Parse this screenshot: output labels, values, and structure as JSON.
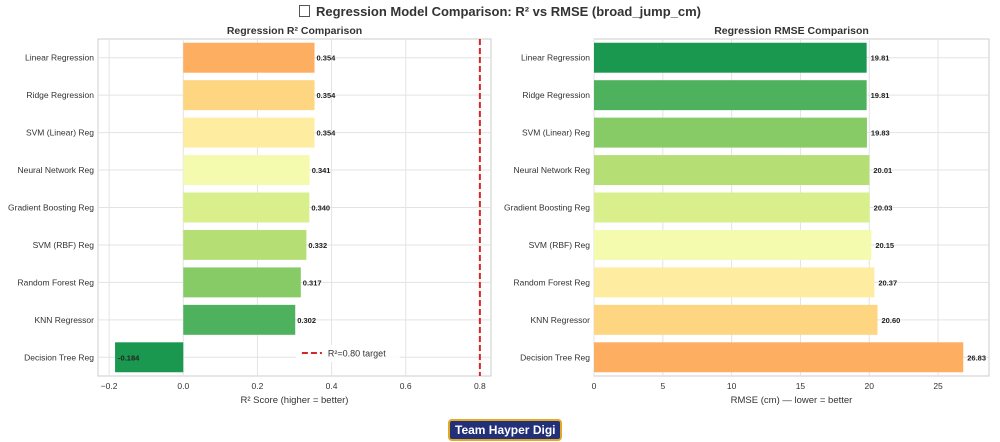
{
  "figure_title": "Regression Model Comparison: R² vs RMSE (broad_jump_cm)",
  "watermark": "Team Hayper Digi",
  "chart_data": [
    {
      "type": "bar",
      "orientation": "horizontal",
      "title": "Regression R² Comparison",
      "xlabel": "R² Score (higher = better)",
      "ylabel": "",
      "categories": [
        "Linear Regression",
        "Ridge Regression",
        "SVM (Linear) Reg",
        "Neural Network Reg",
        "Gradient Boosting Reg",
        "SVM (RBF) Reg",
        "Random Forest Reg",
        "KNN Regressor",
        "Decision Tree Reg"
      ],
      "values": [
        0.354,
        0.354,
        0.354,
        0.341,
        0.34,
        0.332,
        0.317,
        0.302,
        -0.184
      ],
      "value_labels": [
        "0.354",
        "0.354",
        "0.354",
        "0.341",
        "0.340",
        "0.332",
        "0.317",
        "0.302",
        "-0.184"
      ],
      "bar_colors": [
        "#fdae61",
        "#fed580",
        "#feeda1",
        "#f4fbaf",
        "#d9ef8b",
        "#b5df74",
        "#86cb66",
        "#4eb15d",
        "#1a9850"
      ],
      "xlim": [
        -0.23,
        0.83
      ],
      "xticks": [
        -0.2,
        0.0,
        0.2,
        0.4,
        0.6,
        0.8
      ],
      "xtick_labels": [
        "−0.2",
        "0.0",
        "0.2",
        "0.4",
        "0.6",
        "0.8"
      ],
      "reference_line": {
        "x": 0.8,
        "label": "R²=0.80 target",
        "color": "#d62728",
        "style": "dashed"
      },
      "legend_position": "lower-center",
      "grid": true
    },
    {
      "type": "bar",
      "orientation": "horizontal",
      "title": "Regression RMSE Comparison",
      "xlabel": "RMSE (cm) — lower = better",
      "ylabel": "",
      "categories": [
        "Linear Regression",
        "Ridge Regression",
        "SVM (Linear) Reg",
        "Neural Network Reg",
        "Gradient Boosting Reg",
        "SVM (RBF) Reg",
        "Random Forest Reg",
        "KNN Regressor",
        "Decision Tree Reg"
      ],
      "values": [
        19.81,
        19.81,
        19.83,
        20.01,
        20.03,
        20.15,
        20.37,
        20.6,
        26.83
      ],
      "value_labels": [
        "19.81",
        "19.81",
        "19.83",
        "20.01",
        "20.03",
        "20.15",
        "20.37",
        "20.60",
        "26.83"
      ],
      "bar_colors": [
        "#1a9850",
        "#4eb15d",
        "#86cb66",
        "#b5df74",
        "#d9ef8b",
        "#f4fbaf",
        "#feeda1",
        "#fed580",
        "#fdae61"
      ],
      "xlim": [
        0,
        28.7
      ],
      "xticks": [
        0,
        5,
        10,
        15,
        20,
        25
      ],
      "xtick_labels": [
        "0",
        "5",
        "10",
        "15",
        "20",
        "25"
      ],
      "grid": true
    }
  ]
}
